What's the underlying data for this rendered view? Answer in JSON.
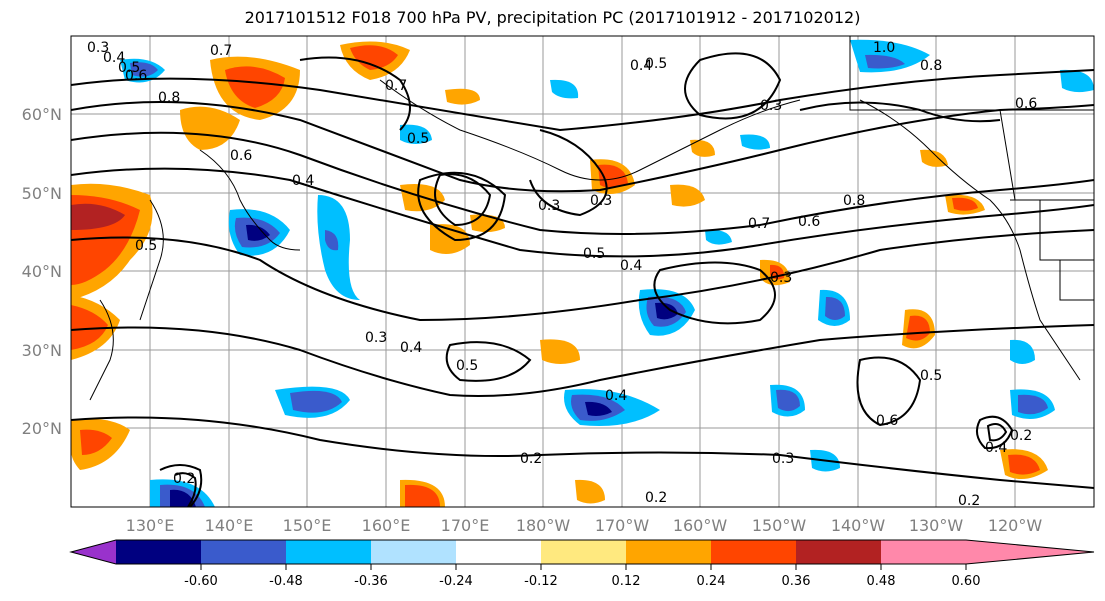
{
  "title": "2017101512 F018 700 hPa PV, precipitation PC (2017101912 - 2017102012)",
  "map": {
    "lat_labels": [
      "60°N",
      "50°N",
      "40°N",
      "30°N",
      "20°N"
    ],
    "lon_labels": [
      "130°E",
      "140°E",
      "150°E",
      "160°E",
      "170°E",
      "180°W",
      "170°W",
      "160°W",
      "150°W",
      "140°W",
      "130°W",
      "120°W"
    ],
    "contour_labels": [
      "0.3",
      "0.4",
      "0.5",
      "0.6",
      "0.7",
      "0.8",
      "1.0",
      "0.4",
      "0.5",
      "0.6",
      "0.7",
      "0.8",
      "0.3",
      "0.4",
      "0.5",
      "0.6",
      "0.7",
      "0.8",
      "0.3",
      "0.5",
      "0.4",
      "0.3",
      "0.4",
      "0.5",
      "0.3",
      "0.4",
      "0.2",
      "0.3",
      "0.2",
      "0.5",
      "0.6",
      "0.4",
      "0.2",
      "0.3",
      "0.6",
      "0.2",
      "0.2",
      "0.5"
    ]
  },
  "colorbar": {
    "colors": [
      "#9932cc",
      "#000080",
      "#3a5bcc",
      "#00bfff",
      "#b0e2ff",
      "#ffffff",
      "#ffe97f",
      "#ffa500",
      "#ff4500",
      "#b22222",
      "#ff88aa"
    ],
    "tick_labels": [
      "-0.60",
      "-0.48",
      "-0.36",
      "-0.24",
      "-0.12",
      "0.12",
      "0.24",
      "0.36",
      "0.48",
      "0.60"
    ]
  }
}
